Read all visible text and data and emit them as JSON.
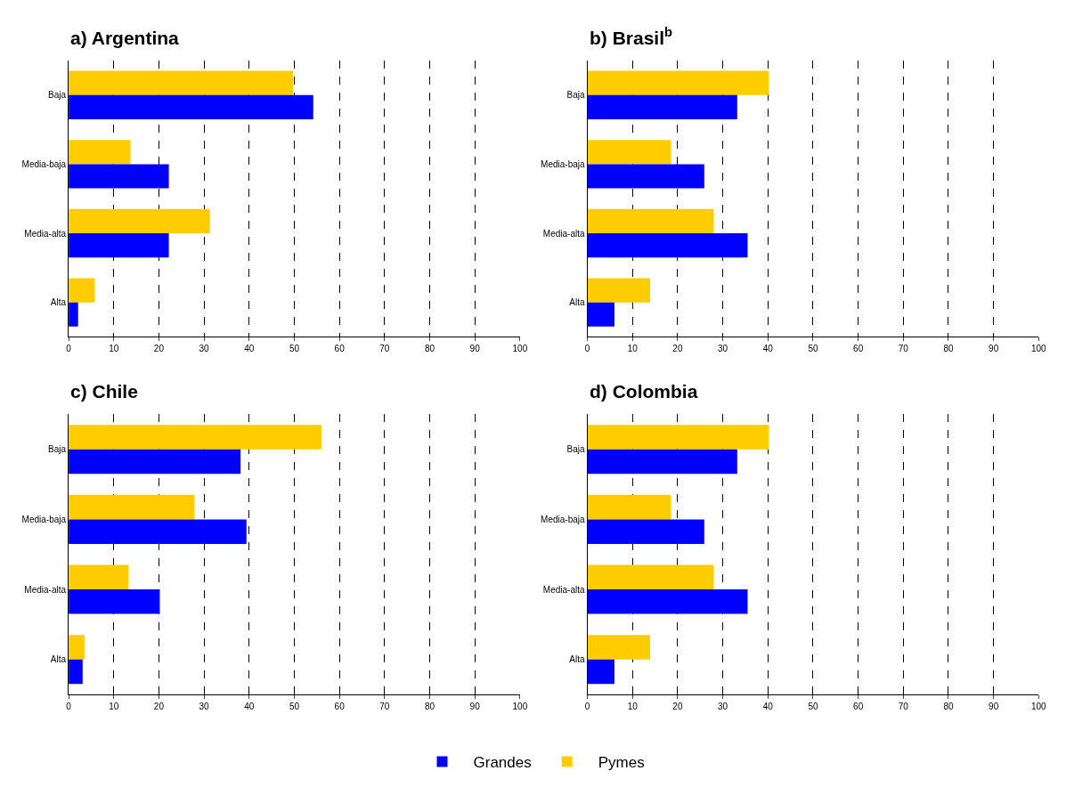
{
  "chart_data": [
    {
      "type": "bar",
      "orientation": "horizontal",
      "title": "a) Argentina",
      "categories": [
        "Baja",
        "Media-baja",
        "Media-alta",
        "Alta"
      ],
      "xlim": [
        0,
        100
      ],
      "xticks": [
        0,
        10,
        20,
        30,
        40,
        50,
        60,
        70,
        80,
        90,
        100
      ],
      "grid": "x",
      "legend": "bottom",
      "series": [
        {
          "name": "Grandes",
          "color": "#0000ff",
          "values": [
            54.2,
            22.2,
            22.2,
            2.1
          ]
        },
        {
          "name": "Pymes",
          "color": "#ffcc00",
          "values": [
            49.7,
            13.7,
            31.3,
            5.8
          ]
        }
      ]
    },
    {
      "type": "bar",
      "orientation": "horizontal",
      "title": "b) Brasil$^{b}$",
      "categories": [
        "Baja",
        "Media-baja",
        "Media-alta",
        "Alta"
      ],
      "xlim": [
        0,
        100
      ],
      "xticks": [
        0,
        10,
        20,
        30,
        40,
        50,
        60,
        70,
        80,
        90,
        100
      ],
      "grid": "x",
      "legend": "bottom",
      "series": [
        {
          "name": "Grandes",
          "color": "#0000ff",
          "values": [
            33.2,
            25.9,
            35.5,
            6.0
          ]
        },
        {
          "name": "Pymes",
          "color": "#ffcc00",
          "values": [
            40.2,
            18.5,
            28.0,
            13.9
          ]
        }
      ]
    },
    {
      "type": "bar",
      "orientation": "horizontal",
      "title": "c) Chile",
      "categories": [
        "Baja",
        "Media-baja",
        "Media-alta",
        "Alta"
      ],
      "xlim": [
        0,
        100
      ],
      "xticks": [
        0,
        10,
        20,
        30,
        40,
        50,
        60,
        70,
        80,
        90,
        100
      ],
      "grid": "x",
      "legend": "bottom",
      "series": [
        {
          "name": "Grandes",
          "color": "#0000ff",
          "values": [
            38.1,
            39.4,
            20.2,
            3.1
          ]
        },
        {
          "name": "Pymes",
          "color": "#ffcc00",
          "values": [
            56.0,
            27.9,
            13.3,
            3.5
          ]
        }
      ]
    },
    {
      "type": "bar",
      "orientation": "horizontal",
      "title": "d) Colombia",
      "categories": [
        "Baja",
        "Media-baja",
        "Media-alta",
        "Alta"
      ],
      "xlim": [
        0,
        100
      ],
      "xticks": [
        0,
        10,
        20,
        30,
        40,
        50,
        60,
        70,
        80,
        90,
        100
      ],
      "grid": "x",
      "legend": "bottom",
      "series": [
        {
          "name": "Grandes",
          "color": "#0000ff",
          "values": [
            33.2,
            25.9,
            35.5,
            6.0
          ]
        },
        {
          "name": "Pymes",
          "color": "#ffcc00",
          "values": [
            40.2,
            18.5,
            28.0,
            13.9
          ]
        }
      ]
    }
  ]
}
